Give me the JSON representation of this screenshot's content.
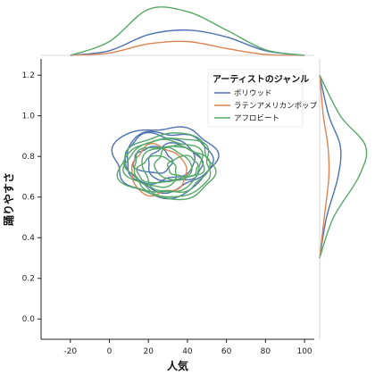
{
  "chart_data": {
    "type": "joint-kde",
    "xlabel": "人気",
    "ylabel": "踊りやすさ",
    "xlim": [
      -35,
      105
    ],
    "ylim": [
      -0.1,
      1.28
    ],
    "x_ticks": [
      "-20",
      "0",
      "20",
      "40",
      "60",
      "80",
      "100"
    ],
    "x_tick_values": [
      -20,
      0,
      20,
      40,
      60,
      80,
      100
    ],
    "y_ticks": [
      "0.0",
      "0.2",
      "0.4",
      "0.6",
      "0.8",
      "1.0",
      "1.2"
    ],
    "y_tick_values": [
      0.0,
      0.2,
      0.4,
      0.6,
      0.8,
      1.0,
      1.2
    ],
    "legend_title": "アーティストのジャンル",
    "legend_position": "top-right",
    "series": [
      {
        "name": "ボリウッド",
        "color": "#4c72b0",
        "center": [
          28,
          0.78
        ],
        "spread": [
          26,
          0.17
        ],
        "density_levels": 5,
        "x_marginal": {
          "x": [
            -20,
            0,
            20,
            40,
            60,
            80,
            100
          ],
          "density": [
            0.0,
            0.1,
            0.45,
            0.55,
            0.4,
            0.1,
            0.0
          ]
        },
        "y_marginal": {
          "y": [
            0.3,
            0.5,
            0.7,
            0.85,
            1.0,
            1.2
          ],
          "density": [
            0.0,
            0.15,
            0.4,
            0.45,
            0.2,
            0.0
          ]
        }
      },
      {
        "name": "ラテンアメリカンポップ",
        "color": "#dd8452",
        "center": [
          25,
          0.73
        ],
        "spread": [
          14,
          0.12
        ],
        "density_levels": 1,
        "x_marginal": {
          "x": [
            -20,
            0,
            20,
            40,
            60,
            80,
            100
          ],
          "density": [
            0.0,
            0.05,
            0.25,
            0.3,
            0.15,
            0.02,
            0.0
          ]
        },
        "y_marginal": {
          "y": [
            0.3,
            0.5,
            0.7,
            0.85,
            1.0,
            1.2
          ],
          "density": [
            0.0,
            0.1,
            0.2,
            0.18,
            0.08,
            0.0
          ]
        }
      },
      {
        "name": "アフロビート",
        "color": "#55a868",
        "center": [
          30,
          0.75
        ],
        "spread": [
          24,
          0.16
        ],
        "density_levels": 8,
        "x_marginal": {
          "x": [
            -20,
            0,
            20,
            40,
            60,
            80,
            100
          ],
          "density": [
            0.0,
            0.3,
            1.0,
            0.95,
            0.55,
            0.12,
            0.0
          ]
        },
        "y_marginal": {
          "y": [
            0.3,
            0.5,
            0.7,
            0.85,
            1.0,
            1.2
          ],
          "density": [
            0.0,
            0.3,
            0.85,
            1.0,
            0.45,
            0.0
          ]
        }
      }
    ],
    "grid": false
  }
}
